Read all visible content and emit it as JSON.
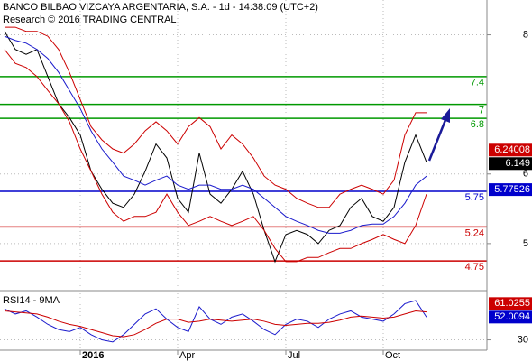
{
  "chart_data": [
    {
      "type": "line",
      "title": "BANCO BILBAO VIZCAYA ARGENTARIA, S.A. - 1d - 14:38:09 (UTC+2)",
      "subtitle": "Research © 2016 TRADING CENTRAL",
      "categories": [
        null,
        null,
        null,
        null,
        null,
        null,
        null,
        "2016",
        null,
        null,
        null,
        null,
        null,
        null,
        null,
        null,
        "Apr",
        null,
        null,
        null,
        null,
        null,
        null,
        null,
        null,
        null,
        "Jul",
        null,
        null,
        null,
        null,
        null,
        null,
        null,
        null,
        "Oct",
        null,
        null,
        null,
        null
      ],
      "series": [
        {
          "color": "#000000",
          "values": [
            8.05,
            7.79,
            7.72,
            7.79,
            7.4,
            7.01,
            6.81,
            6.56,
            6.04,
            5.78,
            5.58,
            5.52,
            5.71,
            6.04,
            6.43,
            6.23,
            5.65,
            5.45,
            6.3,
            5.71,
            5.58,
            5.78,
            6.04,
            5.71,
            5.19,
            4.74,
            5.13,
            5.19,
            5.13,
            5.0,
            5.19,
            5.26,
            5.52,
            5.65,
            5.39,
            5.32,
            5.52,
            6.17,
            6.56,
            6.17
          ]
        },
        {
          "color": "#1a1acc",
          "values": [
            7.98,
            7.92,
            7.88,
            7.79,
            7.66,
            7.46,
            7.2,
            6.94,
            6.62,
            6.36,
            6.17,
            5.97,
            5.91,
            5.84,
            5.91,
            5.97,
            5.84,
            5.78,
            5.84,
            5.84,
            5.78,
            5.78,
            5.84,
            5.78,
            5.65,
            5.52,
            5.39,
            5.32,
            5.26,
            5.19,
            5.15,
            5.15,
            5.19,
            5.26,
            5.28,
            5.28,
            5.39,
            5.58,
            5.84,
            5.97
          ]
        },
        {
          "color": "#cc0000",
          "values": [
            8.11,
            8.11,
            8.05,
            8.05,
            7.98,
            7.79,
            7.46,
            7.07,
            6.68,
            6.49,
            6.36,
            6.3,
            6.43,
            6.62,
            6.75,
            6.62,
            6.43,
            6.68,
            6.81,
            6.68,
            6.36,
            6.56,
            6.43,
            6.23,
            5.97,
            5.84,
            5.78,
            5.65,
            5.58,
            5.52,
            5.52,
            5.71,
            5.78,
            5.84,
            5.78,
            5.71,
            5.91,
            6.56,
            6.88,
            6.88
          ]
        },
        {
          "color": "#cc0000",
          "values": [
            7.79,
            7.59,
            7.53,
            7.4,
            7.2,
            7.01,
            6.75,
            6.36,
            6.04,
            5.71,
            5.45,
            5.32,
            5.39,
            5.39,
            5.45,
            5.71,
            5.45,
            5.26,
            5.32,
            5.39,
            5.32,
            5.26,
            5.32,
            5.39,
            5.19,
            4.93,
            4.74,
            4.74,
            4.8,
            4.8,
            4.87,
            4.93,
            4.93,
            5.0,
            5.06,
            5.13,
            5.06,
            5.0,
            5.26,
            5.71
          ]
        }
      ],
      "ylim": [
        4.35,
        8.5
      ],
      "yticks": [
        5,
        6,
        8
      ],
      "grid": true,
      "levels": [
        {
          "value": 7.4,
          "color": "#009900"
        },
        {
          "value": 7,
          "color": "#009900"
        },
        {
          "value": 6.8,
          "color": "#009900"
        },
        {
          "value": 5.75,
          "color": "#0000cc"
        },
        {
          "value": 5.24,
          "color": "#cc0000"
        },
        {
          "value": 4.75,
          "color": "#cc0000"
        }
      ],
      "markers": [
        {
          "value": 6.24008,
          "color": "#cc0000"
        },
        {
          "value": 6.149,
          "color": "#000000"
        },
        {
          "value": 5.77526,
          "color": "#0000cc"
        }
      ]
    },
    {
      "type": "line",
      "title": "RSI14 - 9MA",
      "series": [
        {
          "color": "#1a1acc",
          "values": [
            60,
            55,
            58,
            52,
            45,
            40,
            38,
            42,
            35,
            30,
            28,
            35,
            45,
            55,
            60,
            50,
            42,
            38,
            62,
            50,
            45,
            52,
            55,
            48,
            40,
            35,
            45,
            50,
            48,
            42,
            50,
            55,
            58,
            52,
            50,
            48,
            55,
            65,
            68,
            52
          ]
        },
        {
          "color": "#cc0000",
          "values": [
            58,
            57,
            56,
            55,
            52,
            48,
            45,
            43,
            40,
            37,
            34,
            33,
            35,
            40,
            46,
            50,
            50,
            47,
            48,
            50,
            49,
            48,
            49,
            50,
            48,
            45,
            44,
            45,
            46,
            46,
            47,
            49,
            52,
            53,
            52,
            51,
            52,
            55,
            58,
            57
          ]
        }
      ],
      "ylim": [
        20,
        75
      ],
      "yticks": [
        30
      ],
      "grid": true,
      "markers": [
        {
          "value": 61.0255,
          "color": "#cc0000"
        },
        {
          "value": 52.0094,
          "color": "#0000cc"
        }
      ]
    }
  ]
}
